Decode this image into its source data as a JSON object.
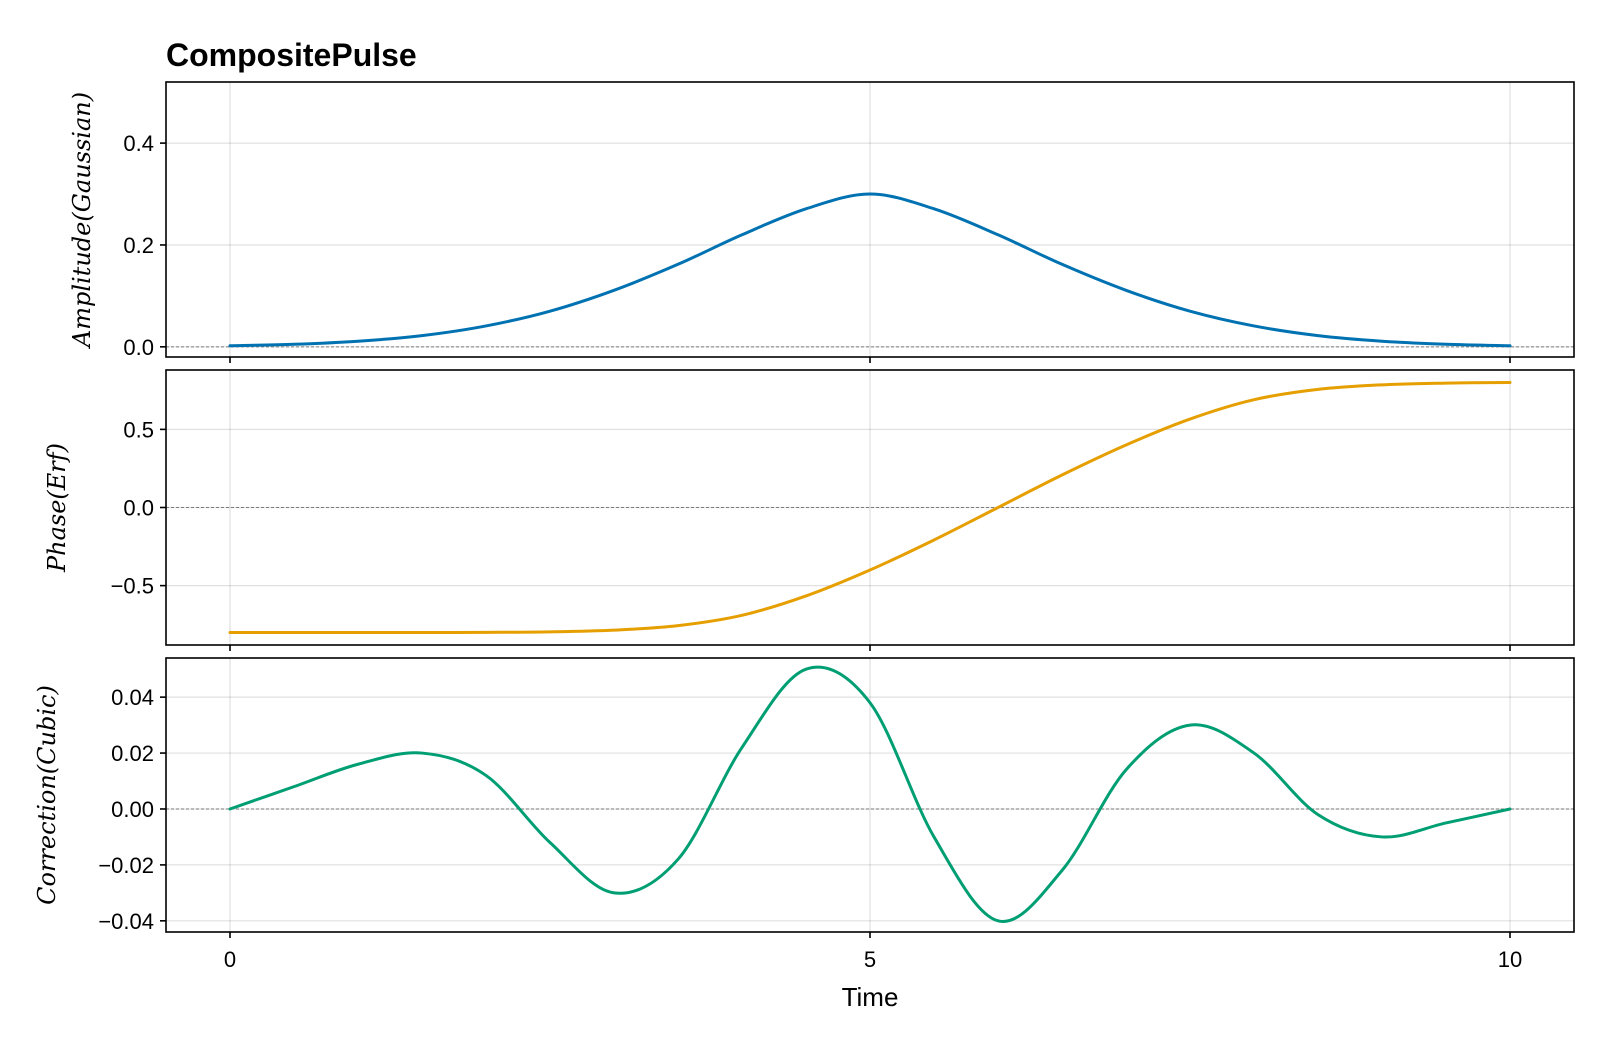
{
  "chart_data": {
    "type": "line",
    "title": "CompositePulse",
    "xlabel": "Time",
    "xlim": [
      -0.5,
      10.5
    ],
    "xticks": [
      0,
      5,
      10
    ],
    "xtick_labels": [
      "0",
      "5",
      "10"
    ],
    "grid": true,
    "zero_line": true,
    "panels": [
      {
        "ylabel": "Amplitude(Gaussian)",
        "color": "#0072b2",
        "ylim": [
          -0.02,
          0.52
        ],
        "yticks": [
          0.0,
          0.2,
          0.4
        ],
        "ytick_labels": [
          "0.0",
          "0.2",
          "0.4"
        ],
        "x": [
          0,
          0.5,
          1,
          1.5,
          2,
          2.5,
          3,
          3.5,
          4,
          4.5,
          5,
          5.5,
          6,
          6.5,
          7,
          7.5,
          8,
          8.5,
          9,
          9.5,
          10
        ],
        "y": [
          0.002,
          0.005,
          0.011,
          0.022,
          0.041,
          0.07,
          0.111,
          0.162,
          0.22,
          0.271,
          0.3,
          0.271,
          0.22,
          0.162,
          0.111,
          0.07,
          0.041,
          0.022,
          0.011,
          0.005,
          0.002
        ]
      },
      {
        "ylabel": "Phase(Erf)",
        "color": "#e69f00",
        "ylim": [
          -0.88,
          0.88
        ],
        "yticks": [
          -0.5,
          0.0,
          0.5
        ],
        "ytick_labels": [
          "−0.5",
          "0.0",
          "0.5"
        ],
        "x": [
          0,
          0.5,
          1,
          1.5,
          2,
          2.5,
          3,
          3.5,
          4,
          4.5,
          5,
          5.5,
          6,
          6.5,
          7,
          7.5,
          8,
          8.5,
          9,
          9.5,
          10
        ],
        "y": [
          -0.8,
          -0.8,
          -0.8,
          -0.8,
          -0.799,
          -0.796,
          -0.785,
          -0.756,
          -0.69,
          -0.566,
          -0.4,
          -0.208,
          0.0,
          0.208,
          0.4,
          0.566,
          0.69,
          0.756,
          0.785,
          0.796,
          0.8
        ]
      },
      {
        "ylabel": "Correction(Cubic)",
        "color": "#009e73",
        "ylim": [
          -0.044,
          0.054
        ],
        "yticks": [
          -0.04,
          -0.02,
          0.0,
          0.02,
          0.04
        ],
        "ytick_labels": [
          "−0.04",
          "−0.02",
          "0.00",
          "0.02",
          "0.04"
        ],
        "x": [
          0,
          0.5,
          1,
          1.5,
          2,
          2.5,
          3,
          3.5,
          4,
          4.5,
          5,
          5.5,
          6,
          6.5,
          7,
          7.5,
          8,
          8.5,
          9,
          9.5,
          10
        ],
        "y": [
          0.0,
          0.008,
          0.016,
          0.02,
          0.012,
          -0.012,
          -0.03,
          -0.018,
          0.022,
          0.05,
          0.038,
          -0.01,
          -0.04,
          -0.022,
          0.014,
          0.03,
          0.02,
          -0.002,
          -0.01,
          -0.005,
          0.0
        ]
      }
    ]
  }
}
